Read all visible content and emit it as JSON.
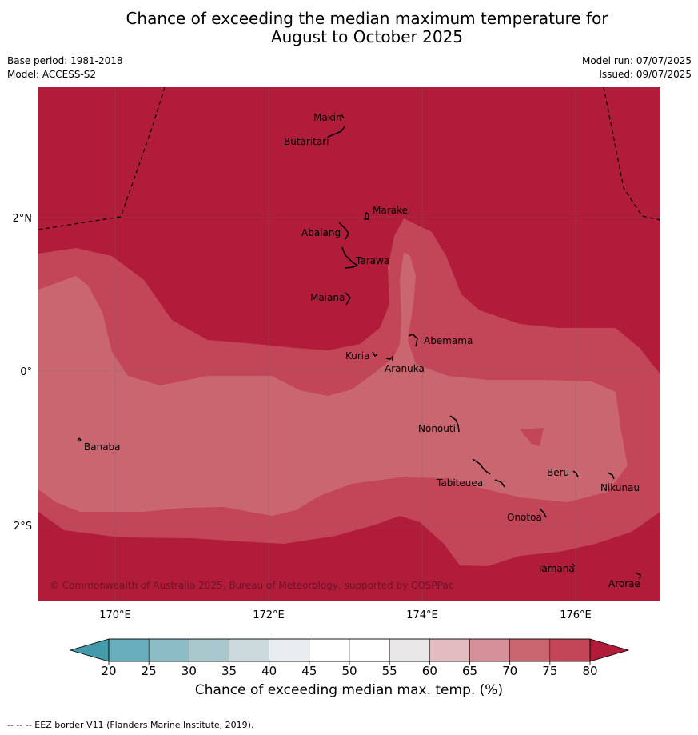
{
  "title": {
    "line1": "Chance of exceeding the median maximum temperature for",
    "line2": "August to October 2025"
  },
  "meta": {
    "base_period": "Base period: 1981-2018",
    "model": "Model: ACCESS-S2",
    "model_run": "Model run: 07/07/2025",
    "issued": "Issued: 09/07/2025"
  },
  "map": {
    "lat_ticks": [
      "2°N",
      "0°",
      "2°S"
    ],
    "lon_ticks": [
      "170°E",
      "172°E",
      "174°E",
      "176°E"
    ],
    "places": [
      "Makin",
      "Butaritari",
      "Marakei",
      "Abaiang",
      "Tarawa",
      "Maiana",
      "Abemama",
      "Kuria",
      "Aranuka",
      "Nonouti",
      "Banaba",
      "Beru",
      "Tabiteuea",
      "Nikunau",
      "Onotoa",
      "Tamana",
      "Arorae"
    ],
    "copyright": "© Commonwealth of Australia 2025, Bureau of Meteorology, supported by COSPPac",
    "zones": [
      {
        "name": "above-75",
        "color": "#b01c3a"
      },
      {
        "name": "70-75",
        "color": "#c34558"
      },
      {
        "name": "65-70",
        "color": "#ca6670"
      }
    ]
  },
  "colorbar": {
    "ticks": [
      "20",
      "25",
      "30",
      "35",
      "40",
      "45",
      "50",
      "55",
      "60",
      "65",
      "70",
      "75",
      "80"
    ],
    "colors": [
      "#68aebd",
      "#8cbcc6",
      "#a8c8cd",
      "#cad9dc",
      "#e8edef",
      "#ffffff",
      "#ffffff",
      "#e9e6e7",
      "#e2bcc1",
      "#d6909a",
      "#ca6670",
      "#c34558"
    ],
    "low_color": "#449aa8",
    "high_color": "#b01c3a",
    "label": "Chance of exceeding median max. temp. (%)"
  },
  "footer": "--  --  -- EEZ border V11 (Flanders Marine Institute, 2019)."
}
